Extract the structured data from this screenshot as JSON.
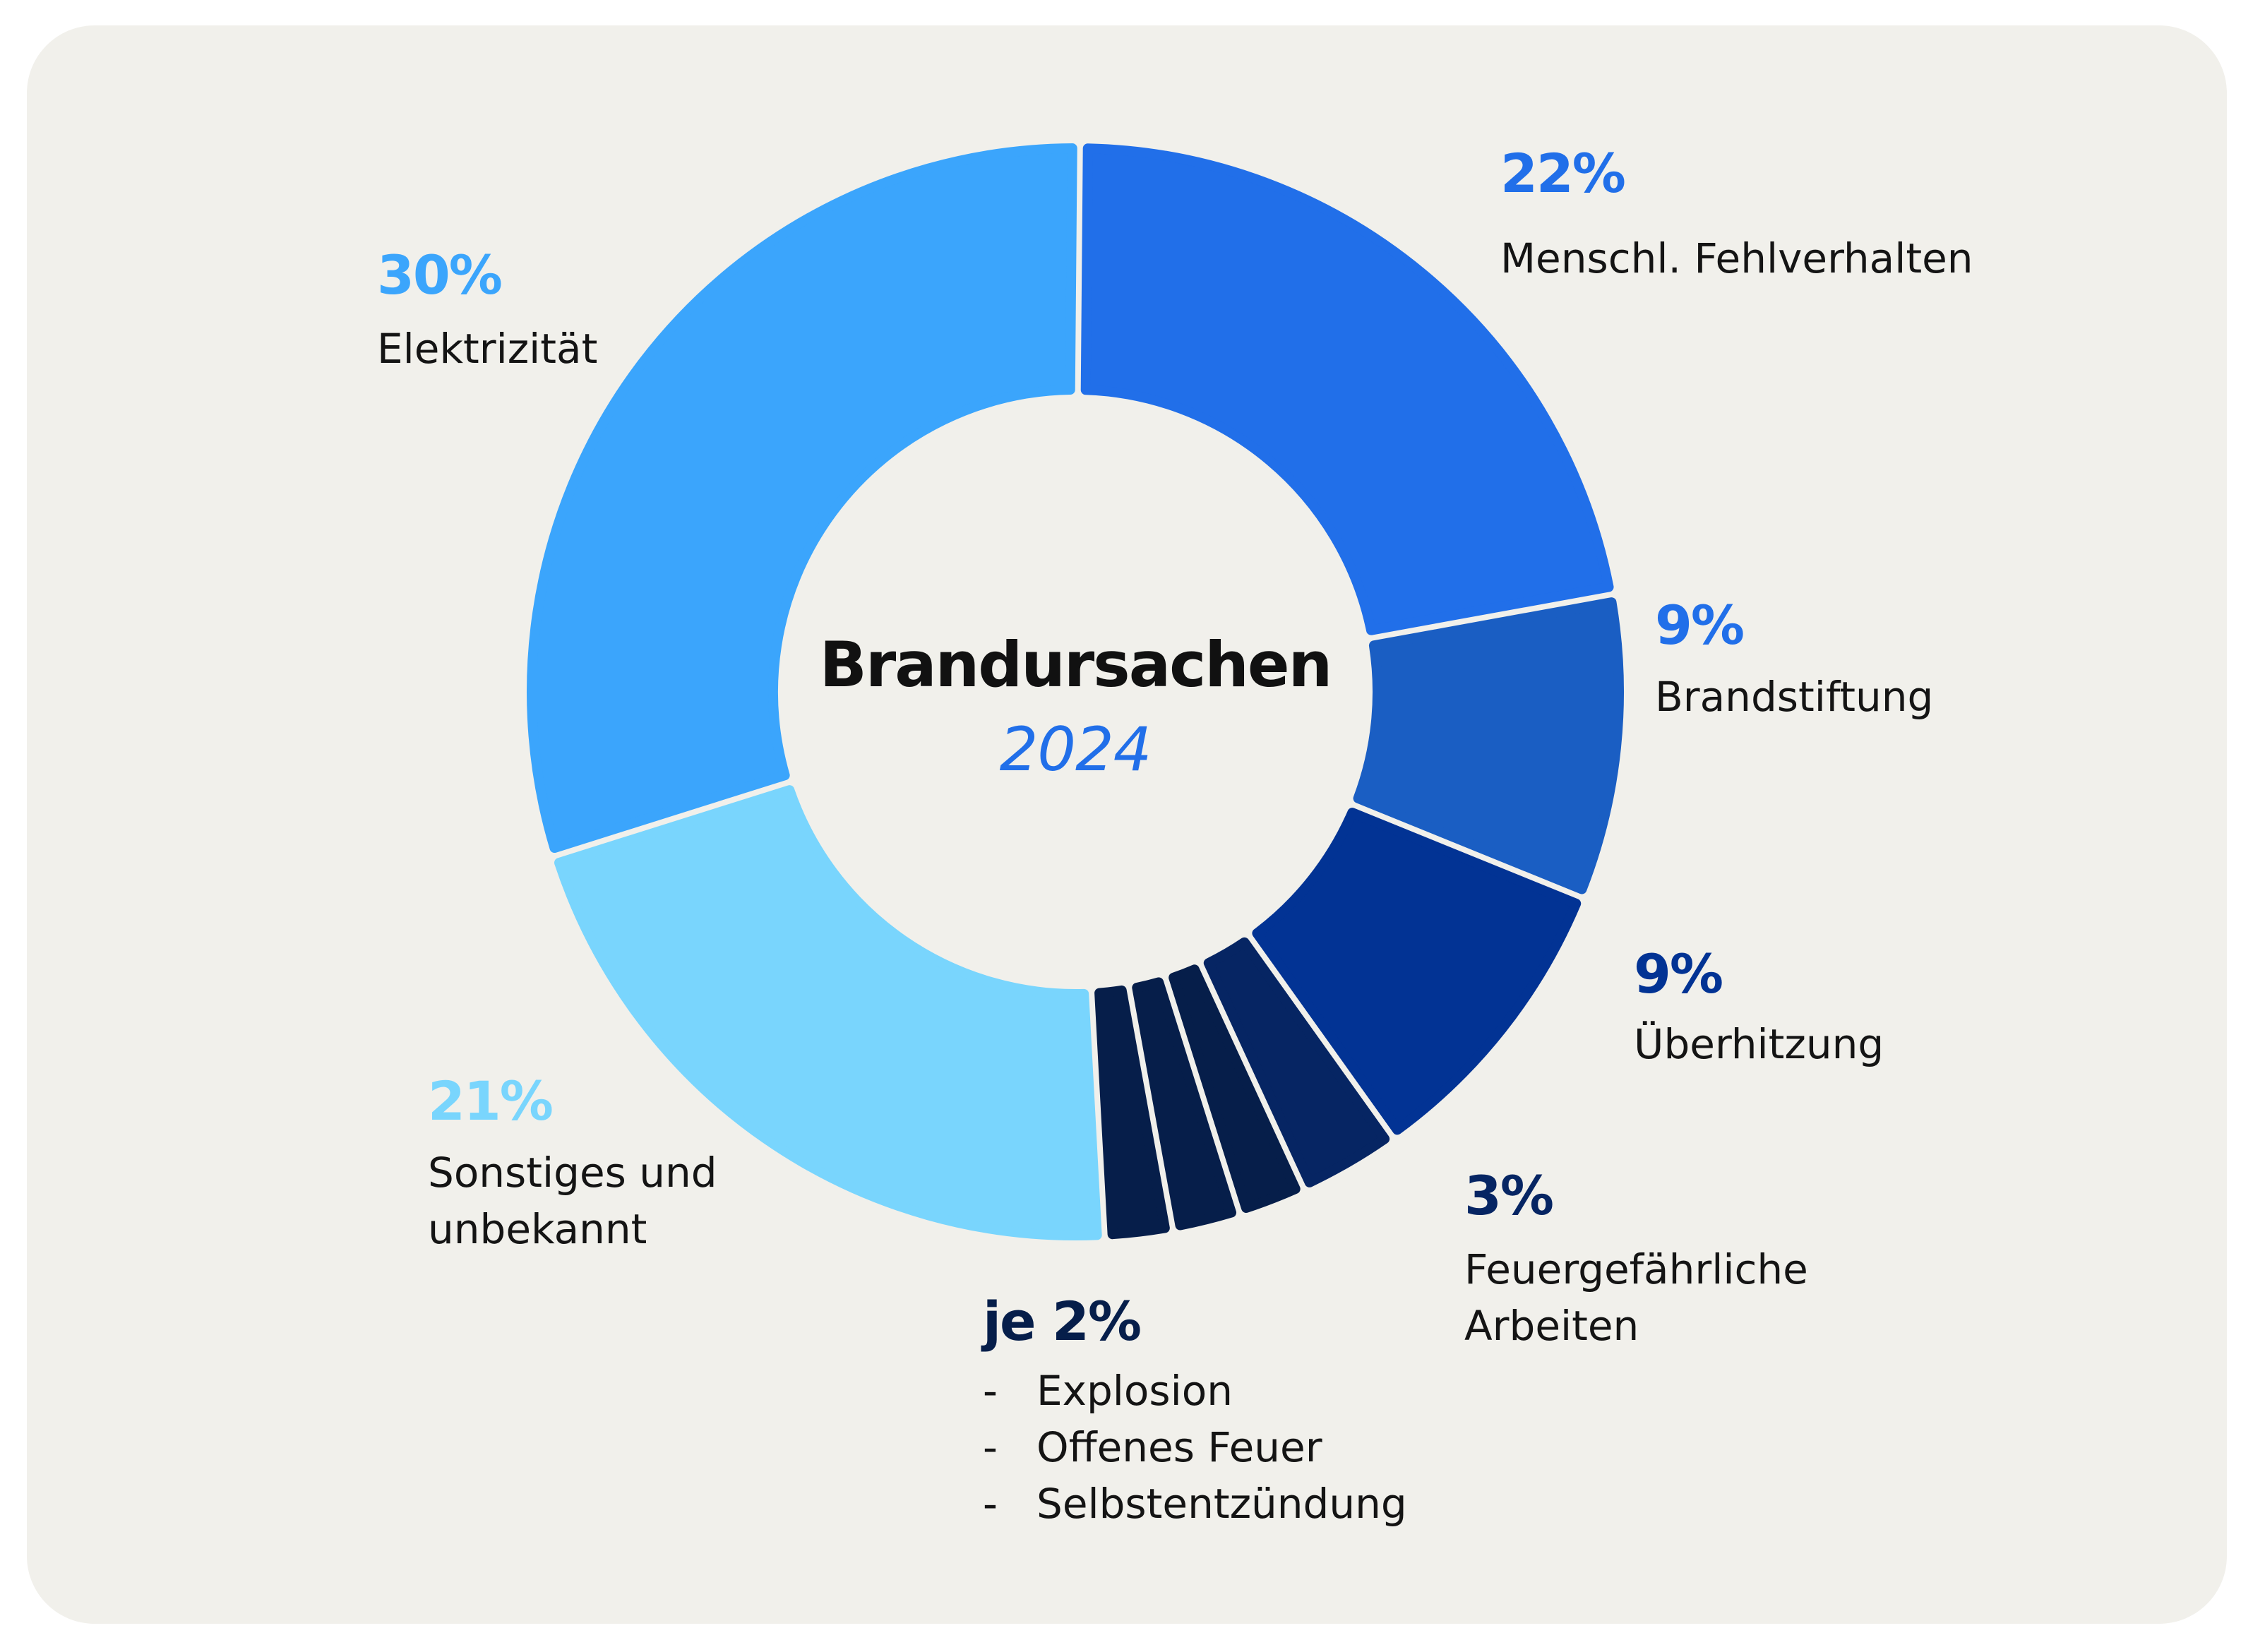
{
  "chart_data": {
    "type": "donut",
    "title": "Brandursachen",
    "subtitle": "2024",
    "unit": "%",
    "segments": [
      {
        "label": "Menschl. Fehlverhalten",
        "value": 22,
        "percent_label": "22%",
        "color": "#216fe9"
      },
      {
        "label": "Brandstiftung",
        "value": 9,
        "percent_label": "9%",
        "color": "#1a5ec3"
      },
      {
        "label": "Überhitzung",
        "value": 9,
        "percent_label": "9%",
        "color": "#023394"
      },
      {
        "label": "Feuergefährliche Arbeiten",
        "value": 3,
        "percent_label": "3%",
        "color": "#062563"
      },
      {
        "label": "Selbstentzündung",
        "value": 2,
        "color": "#061e4a"
      },
      {
        "label": "Offenes Feuer",
        "value": 2,
        "color": "#061e4a"
      },
      {
        "label": "Explosion",
        "value": 2,
        "color": "#061e4a"
      },
      {
        "label": "Sonstiges und unbekannt",
        "value": 21,
        "percent_label": "21%",
        "color": "#79d5fd"
      },
      {
        "label": "Elektrizität",
        "value": 30,
        "percent_label": "30%",
        "color": "#3ba5fc"
      }
    ],
    "group_note": {
      "percent_label": "je 2%",
      "items": [
        "Explosion",
        "Offenes Feuer",
        "Selbstentzündung"
      ],
      "bullet": "-"
    },
    "legend": "none"
  },
  "labels": {
    "menschl": {
      "pct": "22%",
      "line1": "Menschl. Fehlverhalten"
    },
    "brandstiftung": {
      "pct": "9%",
      "line1": "Brandstiftung"
    },
    "ueberhitzung": {
      "pct": "9%",
      "line1": "Überhitzung"
    },
    "feuer": {
      "pct": "3%",
      "line1": "Feuergefährliche",
      "line2": "Arbeiten"
    },
    "sonstiges": {
      "pct": "21%",
      "line1": "Sonstiges und",
      "line2": "unbekannt"
    },
    "elektrizitaet": {
      "pct": "30%",
      "line1": "Elektrizität"
    }
  },
  "center": {
    "title": "Brandursachen",
    "year": "2024",
    "year_color": "#216fe9"
  },
  "colors": {
    "background": "#f1f0eb",
    "text": "#141414"
  }
}
